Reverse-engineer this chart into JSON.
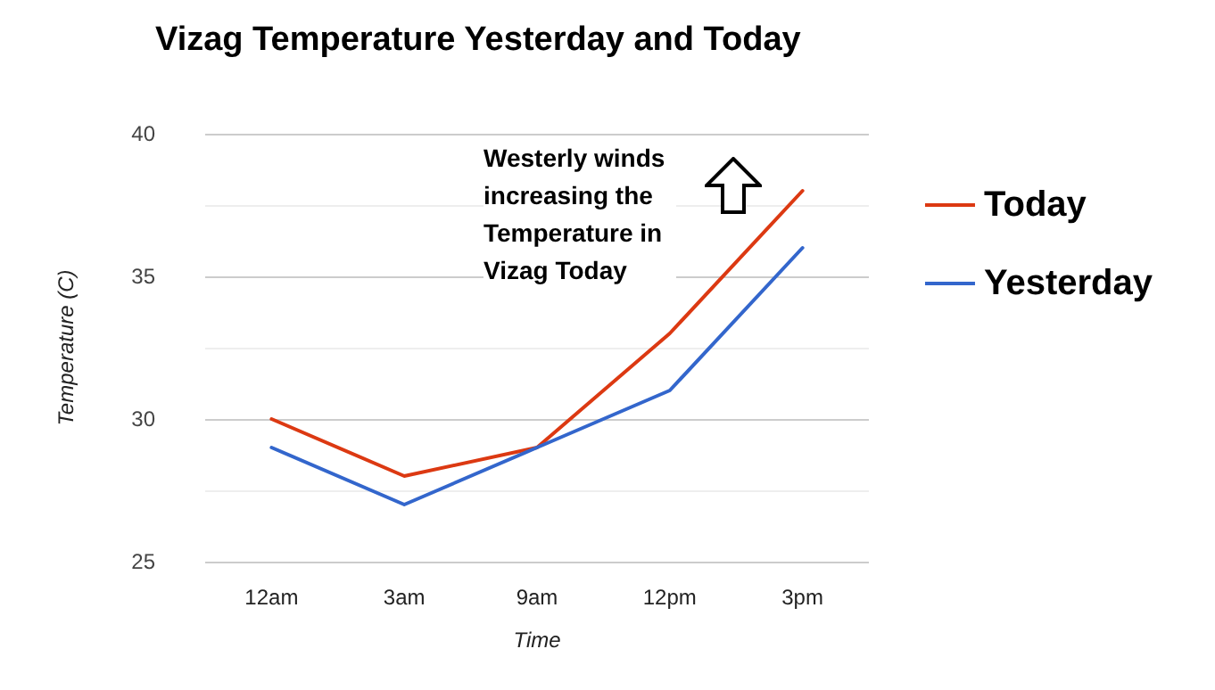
{
  "chart_data": {
    "type": "line",
    "title": "Vizag Temperature Yesterday and Today",
    "xlabel": "Time",
    "ylabel": "Temperature (C)",
    "categories": [
      "12am",
      "3am",
      "9am",
      "12pm",
      "3pm"
    ],
    "series": [
      {
        "name": "Today",
        "color": "#dc3912",
        "values": [
          30,
          28,
          29,
          33,
          38
        ]
      },
      {
        "name": "Yesterday",
        "color": "#3366cc",
        "values": [
          29,
          27,
          29,
          31,
          36
        ]
      }
    ],
    "ylim": [
      25,
      40
    ],
    "yticks": [
      25,
      30,
      35,
      40
    ],
    "grid": "y",
    "legend": "right",
    "marker": "none",
    "annotations": [
      "Westerly winds increasing the Temperature in Vizag Today"
    ]
  }
}
